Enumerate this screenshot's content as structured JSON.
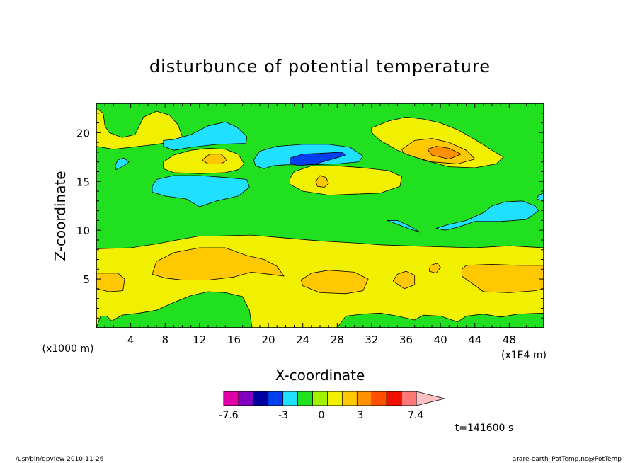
{
  "chart_data": {
    "type": "heatmap",
    "title": "disturbunce of potential temperature",
    "xlabel": "X-coordinate",
    "ylabel": "Z-coordinate",
    "x_units": "(x1E4 m)",
    "y_units": "(x1000 m)",
    "xlim": [
      0,
      52
    ],
    "ylim": [
      0,
      23
    ],
    "x_ticks": [
      4,
      8,
      12,
      16,
      20,
      24,
      28,
      32,
      36,
      40,
      44,
      48
    ],
    "y_ticks": [
      5,
      10,
      15,
      20
    ],
    "time_label": "t=141600 s",
    "colorbar": {
      "tick_labels": [
        "-7.6",
        "-3",
        "0",
        "3",
        "7.4"
      ],
      "tick_values": [
        -7.6,
        -3,
        0,
        3,
        7.4
      ],
      "colors": [
        "#e000a8",
        "#8000c0",
        "#0000a0",
        "#0040f0",
        "#20e0ff",
        "#20e020",
        "#a0f000",
        "#f0f000",
        "#ffc800",
        "#ff9000",
        "#ff5000",
        "#f01000",
        "#ff7878",
        "#ffc0c0"
      ]
    },
    "background_level": "#20e020",
    "regions": [
      {
        "level": "#f0f000",
        "pts": [
          [
            0,
            0
          ],
          [
            0.5,
            1.2
          ],
          [
            1.2,
            1.2
          ],
          [
            1.8,
            0.7
          ],
          [
            3,
            1.3
          ],
          [
            5,
            1.5
          ],
          [
            7,
            1.8
          ],
          [
            9,
            2.6
          ],
          [
            11,
            3.3
          ],
          [
            13,
            3.7
          ],
          [
            15,
            3.6
          ],
          [
            17,
            3.2
          ],
          [
            17.8,
            1.8
          ],
          [
            18.1,
            0
          ],
          [
            28,
            0
          ],
          [
            29,
            1.2
          ],
          [
            31,
            1.4
          ],
          [
            33,
            1.5
          ],
          [
            35,
            1.2
          ],
          [
            37,
            0.8
          ],
          [
            38,
            1.3
          ],
          [
            40,
            1.2
          ],
          [
            42,
            0.6
          ],
          [
            43,
            1.2
          ],
          [
            45,
            1.4
          ],
          [
            47,
            1.1
          ],
          [
            49,
            1.4
          ],
          [
            52,
            1.5
          ],
          [
            52,
            8.2
          ],
          [
            48,
            8.4
          ],
          [
            44,
            8.2
          ],
          [
            40,
            8.3
          ],
          [
            36,
            8.4
          ],
          [
            33,
            8.5
          ],
          [
            30,
            8.7
          ],
          [
            26,
            8.9
          ],
          [
            22,
            9.2
          ],
          [
            18,
            9.5
          ],
          [
            14,
            9.4
          ],
          [
            12,
            9.4
          ],
          [
            10,
            9.1
          ],
          [
            7,
            8.6
          ],
          [
            4,
            8.2
          ],
          [
            0,
            8.1
          ]
        ]
      },
      {
        "level": "#ffc800",
        "pts": [
          [
            6.5,
            5.5
          ],
          [
            7,
            6.8
          ],
          [
            9,
            7.7
          ],
          [
            12,
            8.2
          ],
          [
            15,
            8.2
          ],
          [
            17.5,
            7.4
          ],
          [
            19.5,
            7.0
          ],
          [
            21,
            6.3
          ],
          [
            21.8,
            5.3
          ],
          [
            20,
            5.5
          ],
          [
            18,
            5.7
          ],
          [
            16,
            5.2
          ],
          [
            13,
            4.9
          ],
          [
            10,
            4.9
          ],
          [
            8,
            5.1
          ]
        ]
      },
      {
        "level": "#ffc800",
        "pts": [
          [
            0,
            4
          ],
          [
            1.5,
            3.7
          ],
          [
            3.1,
            3.8
          ],
          [
            3.3,
            5
          ],
          [
            2.5,
            5.6
          ],
          [
            0,
            5.6
          ]
        ]
      },
      {
        "level": "#ffc800",
        "pts": [
          [
            24,
            4.3
          ],
          [
            26,
            3.6
          ],
          [
            29,
            3.5
          ],
          [
            31,
            3.8
          ],
          [
            31.6,
            5
          ],
          [
            30,
            5.7
          ],
          [
            27,
            5.9
          ],
          [
            25,
            5.6
          ],
          [
            23.8,
            4.9
          ]
        ]
      },
      {
        "level": "#ffc800",
        "pts": [
          [
            34.5,
            4.8
          ],
          [
            35.8,
            4
          ],
          [
            37,
            4.4
          ],
          [
            37,
            5.4
          ],
          [
            36,
            5.8
          ],
          [
            35,
            5.5
          ]
        ]
      },
      {
        "level": "#ffc800",
        "pts": [
          [
            38.7,
            5.8
          ],
          [
            39.5,
            5.6
          ],
          [
            40,
            6.2
          ],
          [
            39.6,
            6.6
          ],
          [
            38.8,
            6.4
          ]
        ]
      },
      {
        "level": "#ffc800",
        "pts": [
          [
            42.5,
            5.3
          ],
          [
            45,
            3.7
          ],
          [
            48,
            3.6
          ],
          [
            51,
            3.8
          ],
          [
            52,
            4
          ],
          [
            52,
            6.4
          ],
          [
            49,
            6.4
          ],
          [
            46,
            6.5
          ],
          [
            43,
            6.4
          ],
          [
            42.5,
            6
          ]
        ]
      },
      {
        "level": "#f0f000",
        "pts": [
          [
            0,
            18.6
          ],
          [
            0,
            22.5
          ],
          [
            0.8,
            22
          ],
          [
            1,
            20.7
          ],
          [
            1.5,
            20
          ],
          [
            3,
            19.5
          ],
          [
            4.5,
            19.8
          ],
          [
            5.5,
            21.6
          ],
          [
            7,
            22.2
          ],
          [
            8.5,
            21.8
          ],
          [
            9.5,
            20.8
          ],
          [
            10,
            19.6
          ],
          [
            9,
            19.1
          ],
          [
            7,
            18.8
          ],
          [
            5,
            18.6
          ],
          [
            2,
            18.3
          ]
        ]
      },
      {
        "level": "#f0f000",
        "pts": [
          [
            7.8,
            17
          ],
          [
            9,
            17.7
          ],
          [
            11,
            18.2
          ],
          [
            13,
            18.4
          ],
          [
            15,
            18.3
          ],
          [
            16.5,
            17.8
          ],
          [
            17.2,
            16.8
          ],
          [
            16.5,
            16.2
          ],
          [
            15,
            15.9
          ],
          [
            12,
            15.8
          ],
          [
            9,
            15.9
          ],
          [
            7.8,
            16.3
          ]
        ]
      },
      {
        "level": "#ffc800",
        "pts": [
          [
            12.3,
            17.2
          ],
          [
            13.2,
            17.8
          ],
          [
            14.5,
            17.8
          ],
          [
            15.2,
            17.2
          ],
          [
            14.5,
            16.8
          ],
          [
            13,
            16.8
          ]
        ]
      },
      {
        "level": "#f0f000",
        "pts": [
          [
            22.5,
            15.3
          ],
          [
            23,
            16
          ],
          [
            25,
            16.6
          ],
          [
            28,
            16.6
          ],
          [
            31,
            16.4
          ],
          [
            34,
            16.1
          ],
          [
            35.5,
            15.5
          ],
          [
            35.3,
            14.5
          ],
          [
            33,
            13.8
          ],
          [
            30,
            13.7
          ],
          [
            27,
            13.6
          ],
          [
            24,
            14
          ],
          [
            22.5,
            14.7
          ]
        ]
      },
      {
        "level": "#ffc800",
        "pts": [
          [
            25.5,
            15
          ],
          [
            26,
            15.6
          ],
          [
            26.7,
            15.4
          ],
          [
            27,
            14.8
          ],
          [
            26.5,
            14.4
          ],
          [
            25.7,
            14.5
          ]
        ]
      },
      {
        "level": "#f0f000",
        "pts": [
          [
            32,
            20.5
          ],
          [
            34,
            21.2
          ],
          [
            36,
            21.6
          ],
          [
            38,
            21.4
          ],
          [
            40,
            21
          ],
          [
            42,
            20.3
          ],
          [
            44,
            19.3
          ],
          [
            46,
            18.2
          ],
          [
            47.3,
            17.5
          ],
          [
            46.5,
            16.8
          ],
          [
            44,
            16.4
          ],
          [
            41,
            16.5
          ],
          [
            38,
            17.2
          ],
          [
            35,
            18.2
          ],
          [
            33,
            19.2
          ],
          [
            32,
            20
          ]
        ]
      },
      {
        "level": "#ffc800",
        "pts": [
          [
            35.5,
            18.3
          ],
          [
            37,
            19.2
          ],
          [
            39,
            19.4
          ],
          [
            41,
            19
          ],
          [
            43,
            18.2
          ],
          [
            44,
            17.3
          ],
          [
            42,
            16.8
          ],
          [
            39,
            17
          ],
          [
            37,
            17.5
          ],
          [
            35.7,
            17.9
          ]
        ]
      },
      {
        "level": "#ff9000",
        "pts": [
          [
            38.5,
            18.3
          ],
          [
            39.5,
            18.6
          ],
          [
            41,
            18.4
          ],
          [
            42.4,
            17.8
          ],
          [
            41,
            17.3
          ],
          [
            39,
            17.7
          ]
        ]
      },
      {
        "level": "#20e0ff",
        "pts": [
          [
            7.8,
            19.2
          ],
          [
            9,
            19.3
          ],
          [
            11,
            19.8
          ],
          [
            13,
            20.7
          ],
          [
            15,
            21.1
          ],
          [
            16.3,
            20.6
          ],
          [
            17.5,
            19.6
          ],
          [
            17.4,
            18.9
          ],
          [
            14,
            18.8
          ],
          [
            11,
            18.5
          ],
          [
            9,
            18.2
          ],
          [
            7.8,
            18.6
          ]
        ]
      },
      {
        "level": "#20e0ff",
        "pts": [
          [
            6.5,
            14.5
          ],
          [
            7,
            15.2
          ],
          [
            9,
            15.6
          ],
          [
            12,
            15.6
          ],
          [
            15,
            15.4
          ],
          [
            17.5,
            15.2
          ],
          [
            17.8,
            14.4
          ],
          [
            16.5,
            13.5
          ],
          [
            14,
            13
          ],
          [
            12,
            12.4
          ],
          [
            10.5,
            13.2
          ],
          [
            8,
            13.5
          ],
          [
            6.5,
            13.9
          ]
        ]
      },
      {
        "level": "#20e0ff",
        "pts": [
          [
            18.3,
            17.2
          ],
          [
            19,
            18.1
          ],
          [
            21,
            18.6
          ],
          [
            24,
            18.8
          ],
          [
            27,
            18.8
          ],
          [
            29.5,
            18.5
          ],
          [
            31,
            17.6
          ],
          [
            30.5,
            17
          ],
          [
            28,
            16.8
          ],
          [
            25,
            16.7
          ],
          [
            22,
            16.7
          ],
          [
            20.5,
            16.6
          ],
          [
            19.5,
            16.3
          ],
          [
            18.5,
            16.6
          ]
        ]
      },
      {
        "level": "#0040f0",
        "pts": [
          [
            22.5,
            17.4
          ],
          [
            24,
            17.8
          ],
          [
            26.5,
            17.9
          ],
          [
            28.5,
            18
          ],
          [
            29,
            17.7
          ],
          [
            27.5,
            17.3
          ],
          [
            25.5,
            16.8
          ],
          [
            23.5,
            16.6
          ],
          [
            22.5,
            16.9
          ]
        ]
      },
      {
        "level": "#20e0ff",
        "pts": [
          [
            2.3,
            16.2
          ],
          [
            3.2,
            16.6
          ],
          [
            3.8,
            17
          ],
          [
            3.2,
            17.4
          ],
          [
            2.5,
            17.2
          ],
          [
            2.2,
            16.6
          ]
        ]
      },
      {
        "level": "#20e0ff",
        "pts": [
          [
            39.5,
            10.2
          ],
          [
            41,
            10.6
          ],
          [
            43,
            11
          ],
          [
            45,
            11.8
          ],
          [
            46,
            12.5
          ],
          [
            47.5,
            12.9
          ],
          [
            49.5,
            13
          ],
          [
            51,
            12.5
          ],
          [
            51.4,
            12
          ],
          [
            50,
            11.1
          ],
          [
            47,
            10.9
          ],
          [
            44,
            10.9
          ],
          [
            42,
            10.3
          ],
          [
            40.5,
            10
          ]
        ]
      },
      {
        "level": "#20e0ff",
        "pts": [
          [
            33.8,
            11
          ],
          [
            35,
            10.6
          ],
          [
            36.5,
            10.1
          ],
          [
            37.6,
            9.8
          ],
          [
            36.5,
            10.4
          ],
          [
            35,
            11
          ]
        ]
      },
      {
        "level": "#20e0ff",
        "pts": [
          [
            51.2,
            13.2
          ],
          [
            52,
            13.0
          ],
          [
            52,
            13.8
          ],
          [
            51.4,
            13.6
          ]
        ]
      }
    ]
  },
  "footer": {
    "left": "/usr/bin/gpview   2010-11-26",
    "right": "arare-earth_PotTemp.nc@PotTemp"
  }
}
